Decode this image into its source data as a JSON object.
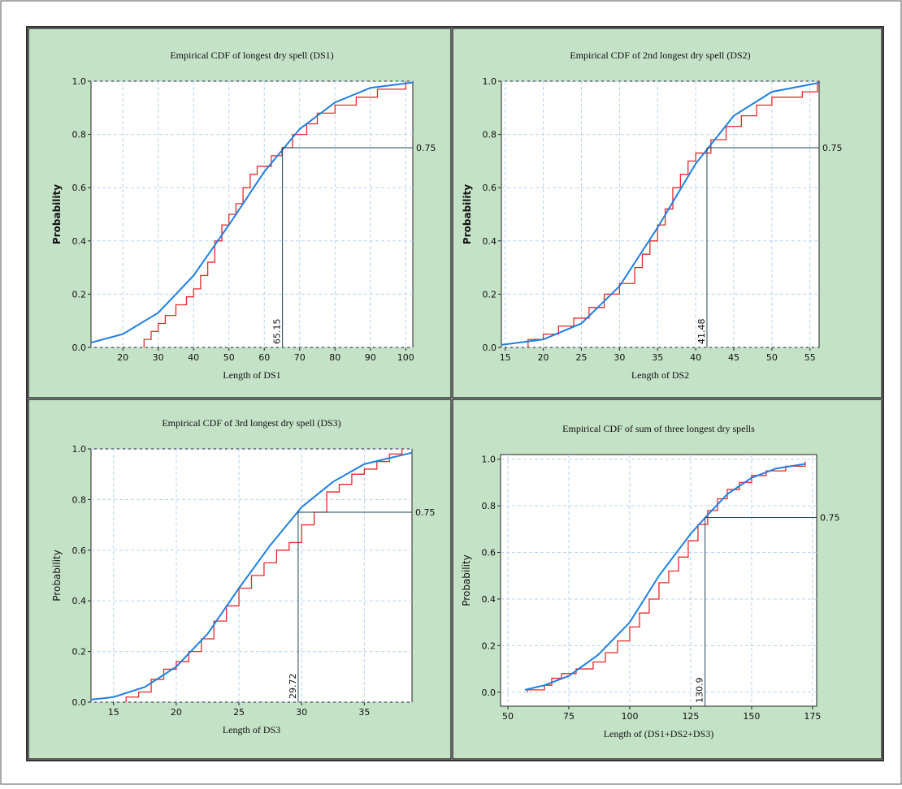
{
  "chart_data": [
    {
      "type": "line",
      "title": "Empirical CDF of longest dry spell (DS1)",
      "xlabel": "Length of DS1",
      "ylabel": "Probability",
      "xlim": [
        11,
        102
      ],
      "ylim": [
        0,
        1
      ],
      "xticks": [
        20,
        30,
        40,
        50,
        60,
        70,
        80,
        90,
        100
      ],
      "yticks": [
        {
          "value": 0,
          "label": "0.0"
        },
        0.2,
        0.4,
        0.6,
        0.8,
        {
          "value": 1,
          "label": "1.0"
        }
      ],
      "grid": true,
      "reference_x": 65.15,
      "reference_y": 0.75,
      "series": [
        {
          "color": "#e8282a",
          "step": true,
          "x": [
            26,
            28,
            30,
            32,
            35,
            38,
            40,
            42,
            44,
            46,
            48,
            50,
            52,
            54,
            56,
            58,
            62,
            65,
            68,
            72,
            75,
            80,
            86,
            92,
            100
          ],
          "values": [
            0.03,
            0.06,
            0.09,
            0.12,
            0.16,
            0.19,
            0.22,
            0.27,
            0.32,
            0.4,
            0.46,
            0.5,
            0.54,
            0.6,
            0.65,
            0.68,
            0.72,
            0.75,
            0.8,
            0.84,
            0.88,
            0.91,
            0.94,
            0.97,
            1.0
          ]
        },
        {
          "color": "#1f7fe0",
          "step": false,
          "x": [
            11,
            20,
            30,
            40,
            50,
            60,
            70,
            80,
            90,
            102
          ],
          "values": [
            0.018,
            0.05,
            0.13,
            0.27,
            0.46,
            0.66,
            0.82,
            0.92,
            0.975,
            0.995
          ]
        }
      ]
    },
    {
      "type": "line",
      "title": "Empirical CDF of 2nd longest dry spell (DS2)",
      "xlabel": "Length of DS2",
      "ylabel": "Probability",
      "xlim": [
        14.5,
        56.2
      ],
      "ylim": [
        0,
        1
      ],
      "xticks": [
        15,
        20,
        25,
        30,
        35,
        40,
        45,
        50,
        55
      ],
      "yticks": [
        {
          "value": 0,
          "label": "0.0"
        },
        0.2,
        0.4,
        0.6,
        0.8,
        {
          "value": 1,
          "label": "1.0"
        }
      ],
      "grid": true,
      "reference_x": 41.48,
      "reference_y": 0.75,
      "series": [
        {
          "color": "#e8282a",
          "step": true,
          "x": [
            18,
            20,
            22,
            24,
            26,
            28,
            30,
            32,
            33,
            34,
            35,
            36,
            37,
            38,
            39,
            40,
            42,
            44,
            46,
            48,
            50,
            54,
            56
          ],
          "values": [
            0.03,
            0.05,
            0.08,
            0.11,
            0.15,
            0.2,
            0.24,
            0.3,
            0.35,
            0.4,
            0.46,
            0.52,
            0.6,
            0.65,
            0.7,
            0.73,
            0.78,
            0.83,
            0.87,
            0.91,
            0.94,
            0.96,
            1.0
          ]
        },
        {
          "color": "#1f7fe0",
          "step": false,
          "x": [
            14.6,
            20,
            25,
            30,
            35,
            40,
            45,
            50,
            56.2
          ],
          "values": [
            0.01,
            0.03,
            0.09,
            0.23,
            0.45,
            0.69,
            0.87,
            0.96,
            0.994
          ]
        }
      ]
    },
    {
      "type": "line",
      "title": "Empirical CDF of 3rd longest dry spell (DS3)",
      "xlabel": "Length of DS3",
      "ylabel": "Probability",
      "xlim": [
        13.2,
        38.8
      ],
      "ylim": [
        0,
        1
      ],
      "xticks": [
        15,
        20,
        25,
        30,
        35
      ],
      "yticks": [
        {
          "value": 0,
          "label": "0.0"
        },
        0.2,
        0.4,
        0.6,
        0.8,
        {
          "value": 1,
          "label": "1.0"
        }
      ],
      "grid": true,
      "reference_x": 29.72,
      "reference_y": 0.75,
      "series": [
        {
          "color": "#e8282a",
          "step": true,
          "x": [
            16,
            17,
            18,
            19,
            20,
            21,
            22,
            23,
            24,
            25,
            26,
            27,
            28,
            29,
            30,
            31,
            32,
            33,
            34,
            35,
            36,
            37,
            38
          ],
          "values": [
            0.02,
            0.04,
            0.09,
            0.13,
            0.16,
            0.2,
            0.25,
            0.32,
            0.38,
            0.45,
            0.5,
            0.55,
            0.6,
            0.63,
            0.7,
            0.75,
            0.83,
            0.86,
            0.9,
            0.92,
            0.95,
            0.98,
            1.0
          ]
        },
        {
          "color": "#1f7fe0",
          "step": false,
          "x": [
            13.2,
            15,
            17.5,
            20,
            22.5,
            25,
            27.5,
            30,
            32.5,
            35,
            38.8
          ],
          "values": [
            0.01,
            0.02,
            0.06,
            0.14,
            0.27,
            0.45,
            0.62,
            0.77,
            0.87,
            0.94,
            0.985
          ]
        }
      ]
    },
    {
      "type": "line",
      "title": "Empirical CDF of sum of three longest dry spells",
      "xlabel": "Length of (DS1+DS2+DS3)",
      "ylabel": "Probability",
      "xlim": [
        47,
        176.7
      ],
      "ylim": [
        -0.06,
        1.02
      ],
      "xticks": [
        50,
        75,
        100,
        125,
        150,
        175
      ],
      "yticks": [
        {
          "value": 0,
          "label": "0.0"
        },
        0.2,
        0.4,
        0.6,
        0.8,
        {
          "value": 1,
          "label": "1.0"
        }
      ],
      "grid": true,
      "reference_x": 130.9,
      "reference_y": 0.75,
      "series": [
        {
          "color": "#e8282a",
          "step": true,
          "x": [
            58,
            65,
            68,
            72,
            78,
            85,
            90,
            95,
            100,
            104,
            108,
            112,
            116,
            120,
            124,
            128,
            132,
            136,
            140,
            145,
            150,
            156,
            164,
            172
          ],
          "values": [
            0.01,
            0.03,
            0.06,
            0.08,
            0.1,
            0.13,
            0.17,
            0.22,
            0.28,
            0.34,
            0.4,
            0.47,
            0.52,
            0.58,
            0.65,
            0.72,
            0.78,
            0.83,
            0.87,
            0.9,
            0.93,
            0.95,
            0.97,
            0.99
          ]
        },
        {
          "color": "#1f7fe0",
          "step": false,
          "x": [
            57,
            65,
            75,
            87,
            100,
            112,
            125,
            131,
            140,
            150,
            160,
            172
          ],
          "values": [
            0.01,
            0.03,
            0.07,
            0.16,
            0.3,
            0.5,
            0.68,
            0.75,
            0.85,
            0.92,
            0.96,
            0.98
          ]
        }
      ]
    }
  ]
}
